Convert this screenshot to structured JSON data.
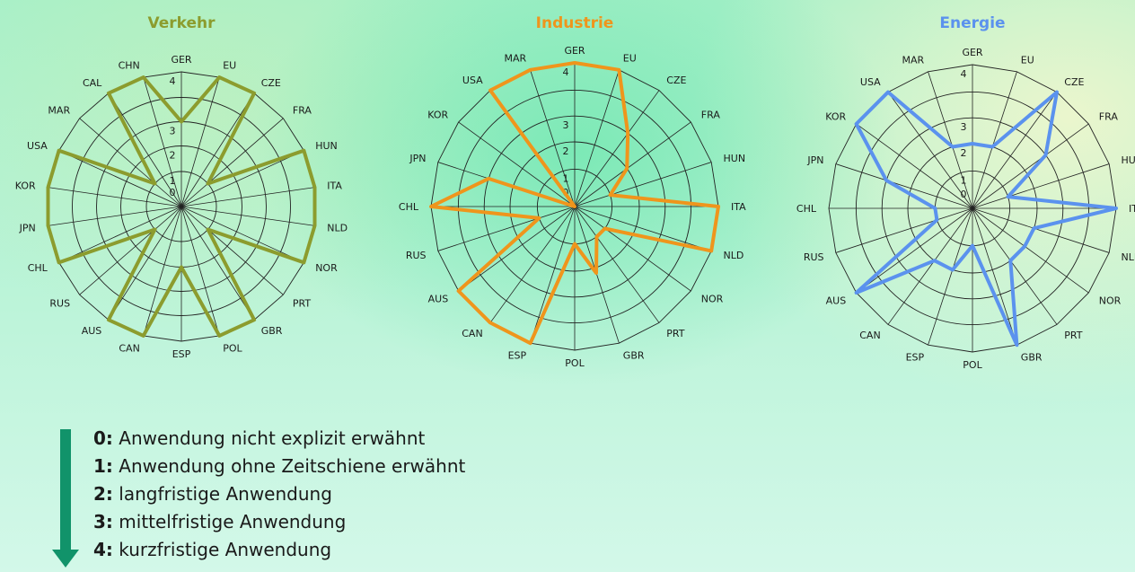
{
  "chart_data": [
    {
      "type": "radar",
      "title": "Verkehr",
      "color": "#8c9c2e",
      "rmin": 0,
      "rmax": 4,
      "ticks": [
        "0",
        "1",
        "2",
        "3",
        "4"
      ],
      "categories": [
        "GER",
        "EU",
        "CZE",
        "FRA",
        "HUN",
        "ITA",
        "NLD",
        "NOR",
        "PRT",
        "GBR",
        "POL",
        "ESP",
        "CAN",
        "AUS",
        "RUS",
        "CHL",
        "JPN",
        "KOR",
        "USA",
        "MAR",
        "CAL",
        "CHN"
      ],
      "values": [
        3,
        4,
        4,
        1,
        4,
        4,
        4,
        4,
        1,
        4,
        4,
        2,
        4,
        4,
        1,
        4,
        4,
        4,
        4,
        1,
        4,
        4
      ]
    },
    {
      "type": "radar",
      "title": "Industrie",
      "color": "#ef951c",
      "rmin": 0,
      "rmax": 4,
      "ticks": [
        "0",
        "1",
        "2",
        "3",
        "4"
      ],
      "categories": [
        "GER",
        "EU",
        "CZE",
        "FRA",
        "HUN",
        "ITA",
        "NLD",
        "NOR",
        "PRT",
        "GBR",
        "POL",
        "ESP",
        "CAN",
        "AUS",
        "RUS",
        "CHL",
        "JPN",
        "KOR",
        "USA",
        "MAR"
      ],
      "values": [
        4,
        4,
        3,
        2,
        1,
        4,
        4,
        1,
        1,
        2.2,
        1,
        4,
        4,
        4,
        1,
        4,
        3,
        0,
        4,
        4
      ]
    },
    {
      "type": "radar",
      "title": "Energie",
      "color": "#5b92ee",
      "rmin": 0,
      "rmax": 4,
      "ticks": [
        "0",
        "1",
        "2",
        "3",
        "4"
      ],
      "categories": [
        "GER",
        "EU",
        "CZE",
        "FRA",
        "HUN",
        "ITA",
        "NLD",
        "NOR",
        "PRT",
        "GBR",
        "POL",
        "ESP",
        "CAN",
        "AUS",
        "RUS",
        "CHL",
        "JPN",
        "KOR",
        "USA",
        "MAR"
      ],
      "values": [
        2,
        2,
        4,
        3,
        1,
        4,
        2,
        2,
        2,
        4,
        1,
        2,
        2,
        4,
        1,
        1,
        3,
        4,
        4,
        2
      ]
    }
  ],
  "legend": {
    "items": [
      {
        "key": "0:",
        "text": "Anwendung nicht explizit erwähnt"
      },
      {
        "key": "1:",
        "text": "Anwendung ohne Zeitschiene erwähnt"
      },
      {
        "key": "2:",
        "text": "langfristige Anwendung"
      },
      {
        "key": "3:",
        "text": "mittelfristige Anwendung"
      },
      {
        "key": "4:",
        "text": "kurzfristige Anwendung"
      }
    ]
  }
}
